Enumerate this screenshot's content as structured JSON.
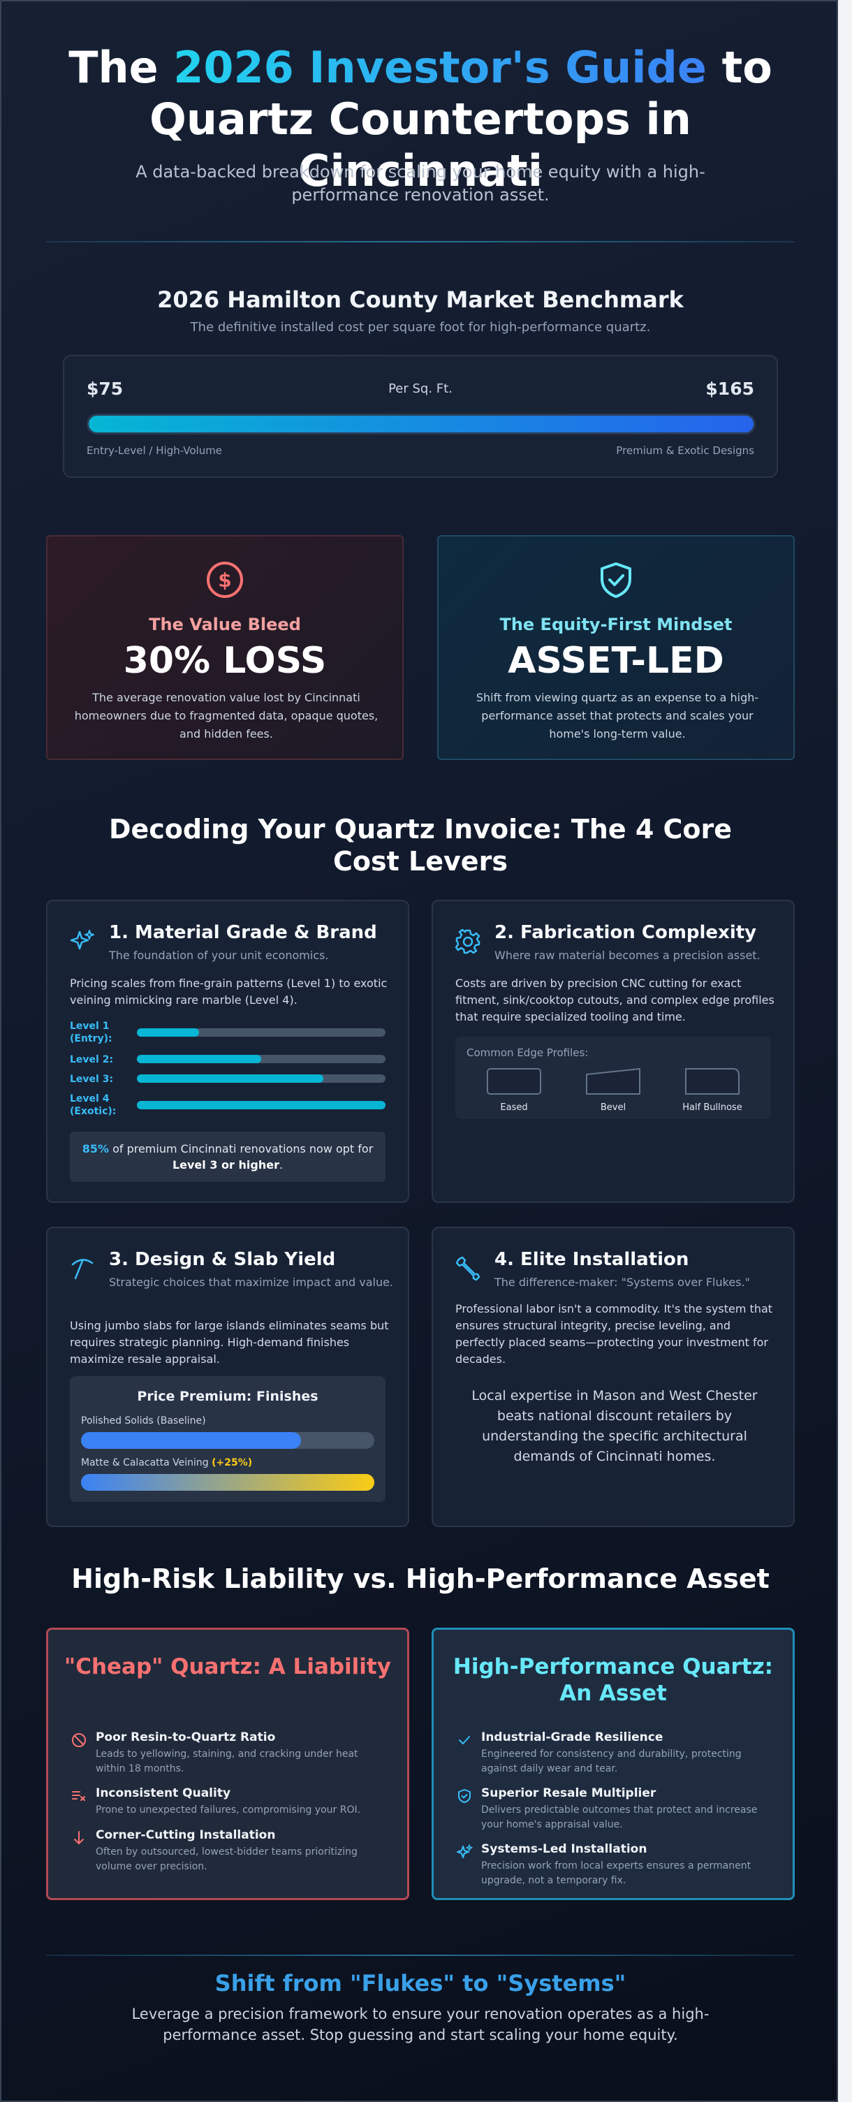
{
  "hero": {
    "title_prefix": "The ",
    "title_highlight": "2026 Investor's Guide",
    "title_suffix_1": " to",
    "title_line2": "Quartz Countertops in Cincinnati",
    "subtitle": "A data-backed breakdown for scaling your home equity with a high-performance renovation asset."
  },
  "benchmark": {
    "title": "2026 Hamilton County Market Benchmark",
    "subtitle": "The definitive installed cost per square foot for high-performance quartz.",
    "low_price": "$75",
    "high_price": "$165",
    "unit": "Per Sq. Ft.",
    "low_label": "Entry-Level / High-Volume",
    "high_label": "Premium & Exotic Designs"
  },
  "value_cards": {
    "bleed": {
      "heading": "The Value Bleed",
      "big": "30% LOSS",
      "text": "The average renovation value lost by Cincinnati homeowners due to fragmented data, opaque quotes, and hidden fees.",
      "icon": "dollar-coin-icon"
    },
    "equity": {
      "heading": "The Equity-First Mindset",
      "big": "ASSET-LED",
      "text": "Shift from viewing quartz as an expense to a high-performance asset that protects and scales your home's long-term value.",
      "icon": "shield-check-icon"
    }
  },
  "decoding": {
    "title": "Decoding Your Quartz Invoice: The 4 Core Cost Levers",
    "material": {
      "title": "1. Material Grade & Brand",
      "subtitle": "The foundation of your unit economics.",
      "body": "Pricing scales from fine-grain patterns (Level 1) to exotic veining mimicking rare marble (Level 4).",
      "levels": [
        {
          "label": "Level 1 (Entry):",
          "value": 0.25
        },
        {
          "label": "Level 2:",
          "value": 0.5
        },
        {
          "label": "Level 3:",
          "value": 0.75
        },
        {
          "label": "Level 4 (Exotic):",
          "value": 1.0
        }
      ],
      "stat_percent": "85%",
      "stat_text": " of premium Cincinnati renovations now opt for ",
      "stat_bold": "Level 3 or higher",
      "stat_end": "."
    },
    "fabrication": {
      "title": "2. Fabrication Complexity",
      "subtitle": "Where raw material becomes a precision asset.",
      "body": "Costs are driven by precision CNC cutting for exact fitment, sink/cooktop cutouts, and complex edge profiles that require specialized tooling and time.",
      "edge_title": "Common Edge Profiles:",
      "edges": [
        "Eased",
        "Bevel",
        "Half Bullnose"
      ]
    },
    "design": {
      "title": "3. Design & Slab Yield",
      "subtitle": "Strategic choices that maximize impact and value.",
      "body": "Using jumbo slabs for large islands eliminates seams but requires strategic planning. High-demand finishes maximize resale appraisal.",
      "premium_title": "Price Premium: Finishes",
      "finishes": [
        {
          "label": "Polished Solids (Baseline)",
          "premium": "",
          "value": 0.75
        },
        {
          "label": "Matte & Calacatta Veining ",
          "premium": "(+25%)",
          "value": 1.0
        }
      ]
    },
    "installation": {
      "title": "4. Elite Installation",
      "subtitle": "The difference-maker: \"Systems over Flukes.\"",
      "body": "Professional labor isn't a commodity. It's the system that ensures structural integrity, precise leveling, and perfectly placed seams—protecting your investment for decades.",
      "quote": "Local expertise in Mason and West Chester beats national discount retailers by understanding the specific architectural demands of Cincinnati homes."
    }
  },
  "comparison": {
    "title": "High-Risk Liability vs. High-Performance Asset",
    "cheap": {
      "heading": "\"Cheap\" Quartz: A Liability",
      "items": [
        {
          "title": "Poor Resin-to-Quartz Ratio",
          "desc": "Leads to yellowing, staining, and cracking under heat within 18 months.",
          "icon": "ban-icon"
        },
        {
          "title": "Inconsistent Quality",
          "desc": "Prone to unexpected failures, compromising your ROI.",
          "icon": "list-x-icon"
        },
        {
          "title": "Corner-Cutting Installation",
          "desc": "Often by outsourced, lowest-bidder teams prioritizing volume over precision.",
          "icon": "arrow-down-icon"
        }
      ]
    },
    "perf": {
      "heading": "High-Performance Quartz: An Asset",
      "items": [
        {
          "title": "Industrial-Grade Resilience",
          "desc": "Engineered for consistency and durability, protecting against daily wear and tear.",
          "icon": "check-icon"
        },
        {
          "title": "Superior Resale Multiplier",
          "desc": "Delivers predictable outcomes that protect and increase your home's appraisal value.",
          "icon": "shield-check-icon"
        },
        {
          "title": "Systems-Led Installation",
          "desc": "Precision work from local experts ensures a permanent upgrade, not a temporary fix.",
          "icon": "sparkles-icon"
        }
      ]
    }
  },
  "footer": {
    "title": "Shift from \"Flukes\" to \"Systems\"",
    "subtitle": "Leverage a precision framework to ensure your renovation operates as a high-performance asset. Stop guessing and start scaling your home equity."
  },
  "colors": {
    "accent_cyan": "#22d3ee",
    "accent_blue": "#3b82f6",
    "danger": "#f87171",
    "gold": "#facc15"
  }
}
